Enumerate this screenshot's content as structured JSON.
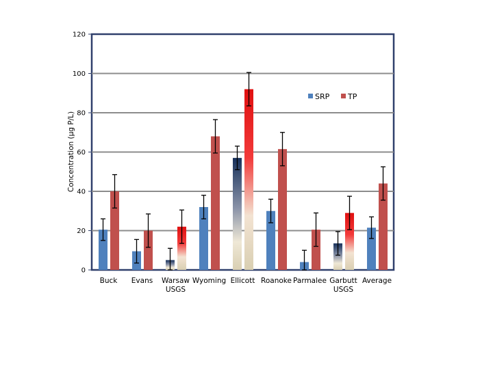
{
  "chart_data": {
    "type": "bar",
    "title": "",
    "xlabel": "",
    "ylabel": "Concentration (µg P/L)",
    "ylim": [
      0,
      120
    ],
    "yticks": [
      0,
      20,
      40,
      60,
      80,
      100,
      120
    ],
    "grid": true,
    "legend_position": "top-right",
    "categories": [
      [
        "Buck"
      ],
      [
        "Evans"
      ],
      [
        "Warsaw",
        "USGS"
      ],
      [
        "Wyoming"
      ],
      [
        "Ellicott"
      ],
      [
        "Roanoke"
      ],
      [
        "Parmalee"
      ],
      [
        "Garbutt",
        "USGS"
      ],
      [
        "Average"
      ]
    ],
    "series": [
      {
        "name": "SRP",
        "color": "#4F81BD",
        "values": [
          20.5,
          9.5,
          5,
          32,
          57,
          30,
          4,
          13.5,
          21.5
        ],
        "error": [
          5.5,
          6,
          6,
          6,
          6,
          6,
          6,
          6,
          5.5
        ]
      },
      {
        "name": "TP",
        "color": "#C0504D",
        "values": [
          40,
          20,
          22,
          68,
          92,
          61.5,
          20.5,
          29,
          44
        ],
        "error": [
          8.5,
          8.5,
          8.5,
          8.5,
          8.5,
          8.5,
          8.5,
          8.5,
          8.5
        ]
      }
    ],
    "gradient_bars": [
      {
        "series": 0,
        "index": 2
      },
      {
        "series": 0,
        "index": 4
      },
      {
        "series": 0,
        "index": 7
      },
      {
        "series": 1,
        "index": 2
      },
      {
        "series": 1,
        "index": 4
      },
      {
        "series": 1,
        "index": 7
      }
    ]
  }
}
